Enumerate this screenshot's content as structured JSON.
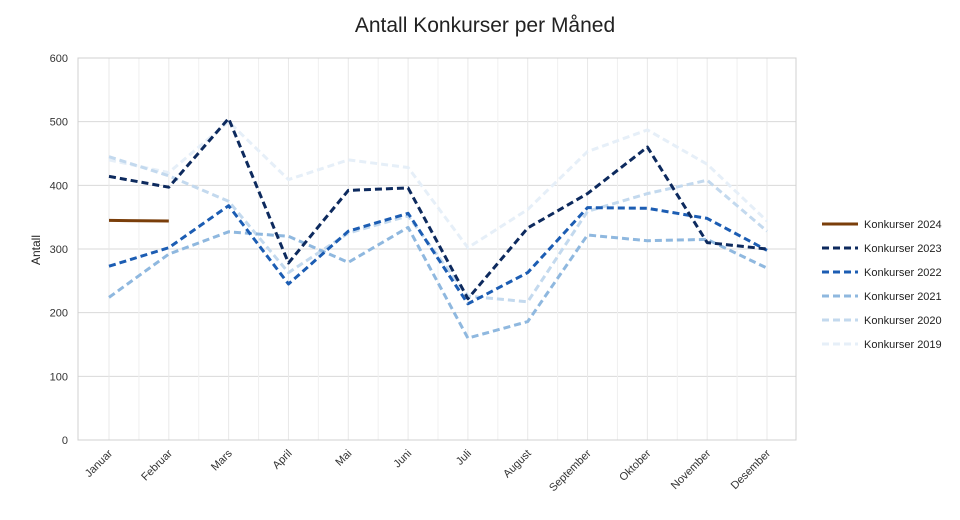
{
  "chart_data": {
    "type": "line",
    "title": "Antall Konkurser per Måned",
    "xlabel": "",
    "ylabel": "Antall",
    "ylim": [
      0,
      600
    ],
    "yticks": [
      0,
      100,
      200,
      300,
      400,
      500,
      600
    ],
    "grid": true,
    "legend_position": "right",
    "categories": [
      "Januar",
      "Februar",
      "Mars",
      "April",
      "Mai",
      "Juni",
      "Juli",
      "August",
      "September",
      "Oktober",
      "November",
      "Desember"
    ],
    "series": [
      {
        "name": "Konkurser 2024",
        "color": "#7a3e0a",
        "dashed": false,
        "values": [
          345,
          344,
          null,
          null,
          null,
          null,
          null,
          null,
          null,
          null,
          null,
          null
        ]
      },
      {
        "name": "Konkurser 2023",
        "color": "#0d2a5e",
        "dashed": true,
        "values": [
          414,
          397,
          505,
          278,
          392,
          396,
          222,
          333,
          387,
          460,
          310,
          300
        ]
      },
      {
        "name": "Konkurser 2022",
        "color": "#1c5db3",
        "dashed": true,
        "values": [
          273,
          302,
          368,
          245,
          328,
          356,
          214,
          263,
          365,
          364,
          348,
          298
        ]
      },
      {
        "name": "Konkurser 2021",
        "color": "#8fb8df",
        "dashed": true,
        "values": [
          224,
          292,
          327,
          320,
          279,
          334,
          160,
          186,
          322,
          313,
          315,
          270
        ]
      },
      {
        "name": "Konkurser 2020",
        "color": "#c3d9ee",
        "dashed": true,
        "values": [
          445,
          415,
          375,
          263,
          325,
          352,
          226,
          217,
          359,
          387,
          408,
          328
        ]
      },
      {
        "name": "Konkurser 2019",
        "color": "#e6eff8",
        "dashed": true,
        "values": [
          440,
          420,
          500,
          409,
          440,
          428,
          302,
          362,
          453,
          487,
          433,
          344
        ]
      }
    ]
  }
}
